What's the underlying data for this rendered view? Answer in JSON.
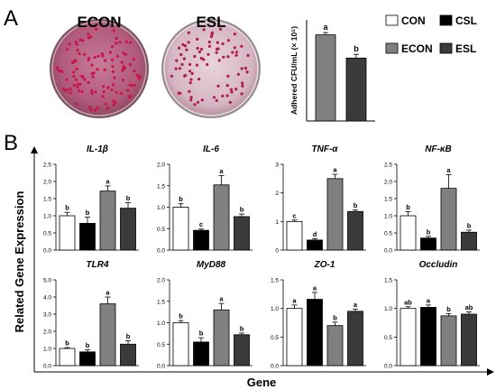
{
  "panel_labels": [
    "A",
    "B"
  ],
  "plate_labels": [
    "ECON",
    "ESL"
  ],
  "legend": [
    {
      "label": "CON",
      "color": "#ffffff"
    },
    {
      "label": "CSL",
      "color": "#000000"
    },
    {
      "label": "ECON",
      "color": "#808080"
    },
    {
      "label": "ESL",
      "color": "#3a3a3a"
    }
  ],
  "chart_data": [
    {
      "type": "bar",
      "panel": "A",
      "ylabel": "Adhered CFU/mL (× 10⁵)",
      "categories": [
        "ECON",
        "ESL"
      ],
      "values": [
        115,
        84
      ],
      "errors": [
        3,
        5
      ],
      "letters": [
        "a",
        "b"
      ],
      "colors": [
        "#808080",
        "#3a3a3a"
      ],
      "ylim": [
        0,
        135
      ]
    },
    {
      "type": "bar",
      "panel": "B",
      "xlabel": "Gene",
      "ylabel": "Related Gene Expression",
      "categories": [
        "CON",
        "CSL",
        "ECON",
        "ESL"
      ],
      "colors": [
        "#ffffff",
        "#000000",
        "#808080",
        "#3a3a3a"
      ],
      "subplots": [
        {
          "title": "IL-1β",
          "values": [
            1.0,
            0.78,
            1.72,
            1.22
          ],
          "errors": [
            0.1,
            0.18,
            0.15,
            0.16
          ],
          "letters": [
            "b",
            "b",
            "a",
            "b"
          ],
          "ylim": [
            0,
            2.5
          ],
          "ticks": [
            "0.0",
            "0.5",
            "1.0",
            "1.5",
            "2.0",
            "2.5"
          ]
        },
        {
          "title": "IL-6",
          "values": [
            1.0,
            0.46,
            1.52,
            0.78
          ],
          "errors": [
            0.08,
            0.03,
            0.22,
            0.06
          ],
          "letters": [
            "b",
            "c",
            "a",
            "b"
          ],
          "ylim": [
            0,
            2.0
          ],
          "ticks": [
            "0.0",
            "0.5",
            "1.0",
            "1.5",
            "2.0"
          ]
        },
        {
          "title": "TNF-α",
          "values": [
            1.0,
            0.35,
            2.5,
            1.35
          ],
          "errors": [
            0.05,
            0.05,
            0.15,
            0.05
          ],
          "letters": [
            "c",
            "d",
            "a",
            "b"
          ],
          "ylim": [
            0,
            3
          ],
          "ticks": [
            "0",
            "1",
            "2",
            "3"
          ]
        },
        {
          "title": "NF-κB",
          "values": [
            1.0,
            0.35,
            1.8,
            0.52
          ],
          "errors": [
            0.12,
            0.05,
            0.4,
            0.06
          ],
          "letters": [
            "b",
            "b",
            "a",
            "b"
          ],
          "ylim": [
            0,
            2.5
          ],
          "ticks": [
            "0.0",
            "0.5",
            "1.0",
            "1.5",
            "2.0",
            "2.5"
          ]
        },
        {
          "title": "TLR4",
          "values": [
            1.0,
            0.8,
            3.6,
            1.25
          ],
          "errors": [
            0.05,
            0.12,
            0.4,
            0.2
          ],
          "letters": [
            "b",
            "b",
            "a",
            "b"
          ],
          "ylim": [
            0,
            5.0
          ],
          "ticks": [
            "0.0",
            "1.0",
            "2.0",
            "3.0",
            "4.0",
            "5.0"
          ]
        },
        {
          "title": "MyD88",
          "values": [
            1.0,
            0.55,
            1.3,
            0.72
          ],
          "errors": [
            0.05,
            0.1,
            0.15,
            0.04
          ],
          "letters": [
            "b",
            "b",
            "a",
            "b"
          ],
          "ylim": [
            0,
            2.0
          ],
          "ticks": [
            "0.0",
            "0.5",
            "1.0",
            "1.5",
            "2.0"
          ]
        },
        {
          "title": "ZO-1",
          "values": [
            1.0,
            1.16,
            0.7,
            0.95
          ],
          "errors": [
            0.06,
            0.12,
            0.06,
            0.04
          ],
          "letters": [
            "a",
            "a",
            "b",
            "a"
          ],
          "ylim": [
            0,
            1.5
          ],
          "ticks": [
            "0.0",
            "0.5",
            "1.0",
            "1.5"
          ]
        },
        {
          "title": "Occludin",
          "values": [
            1.0,
            1.02,
            0.87,
            0.9
          ],
          "errors": [
            0.03,
            0.04,
            0.04,
            0.04
          ],
          "letters": [
            "ab",
            "a",
            "b",
            "ab"
          ],
          "ylim": [
            0,
            1.5
          ],
          "ticks": [
            "0.0",
            "0.5",
            "1.0",
            "1.5"
          ]
        }
      ]
    }
  ]
}
